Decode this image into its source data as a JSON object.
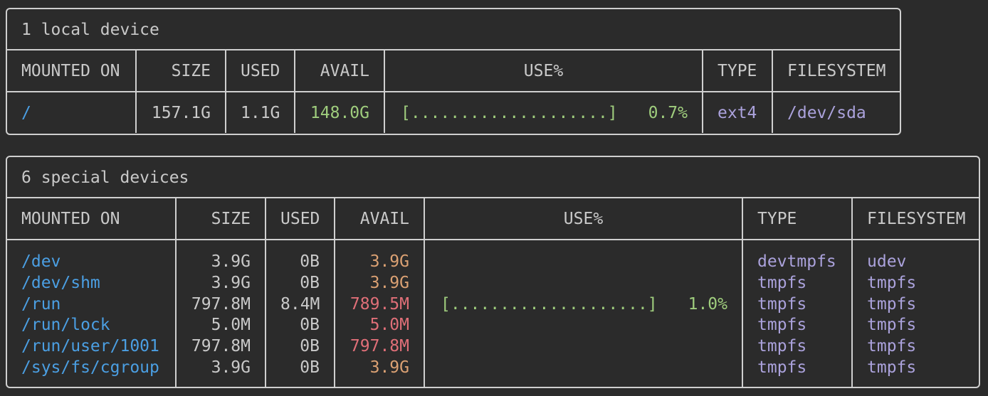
{
  "colors": {
    "background": "#2b2b2b",
    "border": "#cfcfcf",
    "mount": "#4b9fe3",
    "avail_ok": "#9fcd7d",
    "avail_warn": "#dba173",
    "avail_low": "#e06f78",
    "type": "#aba2dc"
  },
  "headers": {
    "mounted_on": "MOUNTED ON",
    "size": "SIZE",
    "used": "USED",
    "avail": "AVAIL",
    "use_pct": "USE%",
    "type": "TYPE",
    "filesystem": "FILESYSTEM"
  },
  "local": {
    "title": "1 local device",
    "rows": [
      {
        "mounted_on": "/",
        "size": "157.1G",
        "used": "1.1G",
        "avail": "148.0G",
        "bar": "[....................]",
        "use_pct": "0.7%",
        "use_fraction": 0.007,
        "type": "ext4",
        "filesystem": "/dev/sda"
      }
    ]
  },
  "special": {
    "title": "6 special devices",
    "rows": [
      {
        "mounted_on": "/dev",
        "size": "3.9G",
        "used": "0B",
        "avail": "3.9G",
        "avail_color": "orange",
        "bar": "",
        "use_pct": "",
        "type": "devtmpfs",
        "filesystem": "udev"
      },
      {
        "mounted_on": "/dev/shm",
        "size": "3.9G",
        "used": "0B",
        "avail": "3.9G",
        "avail_color": "orange",
        "bar": "",
        "use_pct": "",
        "type": "tmpfs",
        "filesystem": "tmpfs"
      },
      {
        "mounted_on": "/run",
        "size": "797.8M",
        "used": "8.4M",
        "avail": "789.5M",
        "avail_color": "red",
        "bar": "[....................]",
        "use_pct": "1.0%",
        "use_fraction": 0.01,
        "type": "tmpfs",
        "filesystem": "tmpfs"
      },
      {
        "mounted_on": "/run/lock",
        "size": "5.0M",
        "used": "0B",
        "avail": "5.0M",
        "avail_color": "red",
        "bar": "",
        "use_pct": "",
        "type": "tmpfs",
        "filesystem": "tmpfs"
      },
      {
        "mounted_on": "/run/user/1001",
        "size": "797.8M",
        "used": "0B",
        "avail": "797.8M",
        "avail_color": "red",
        "bar": "",
        "use_pct": "",
        "type": "tmpfs",
        "filesystem": "tmpfs"
      },
      {
        "mounted_on": "/sys/fs/cgroup",
        "size": "3.9G",
        "used": "0B",
        "avail": "3.9G",
        "avail_color": "orange",
        "bar": "",
        "use_pct": "",
        "type": "tmpfs",
        "filesystem": "tmpfs"
      }
    ]
  }
}
